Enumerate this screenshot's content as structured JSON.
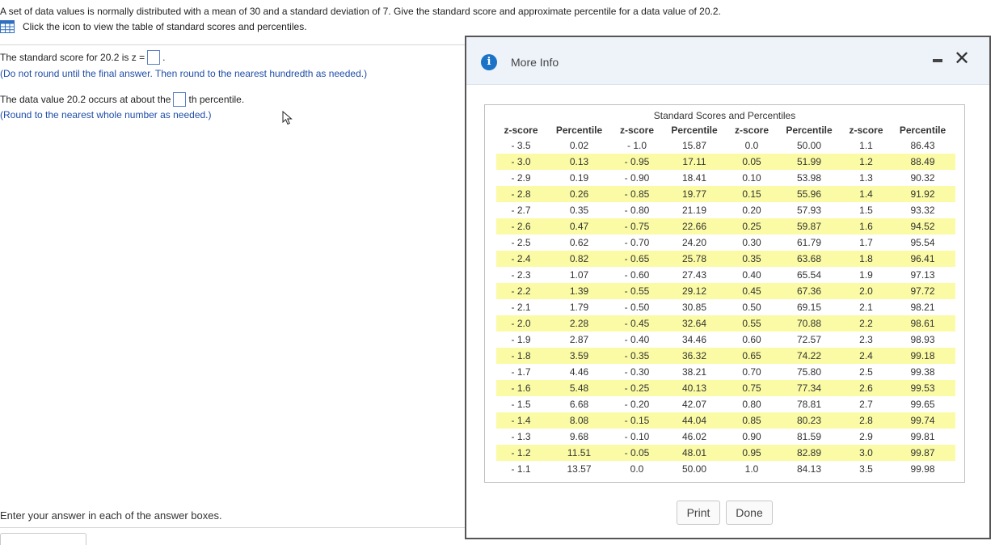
{
  "question": {
    "text": "A set of data values is normally distributed with a mean of 30 and a standard deviation of 7. Give the standard score and approximate percentile for a data value of 20.2.",
    "table_link": "Click the icon to view the table of standard scores and percentiles."
  },
  "part1": {
    "prefix": "The standard score for 20.2 is z =",
    "suffix": ".",
    "hint": "(Do not round until the final answer. Then round to the nearest hundredth as needed.)"
  },
  "part2": {
    "prefix": "The data value 20.2 occurs at about the",
    "suffix": "th percentile.",
    "hint": "(Round to the nearest whole number as needed.)"
  },
  "footer": "Enter your answer in each of the answer boxes.",
  "modal": {
    "title": "More Info",
    "table_caption": "Standard Scores and Percentiles",
    "headers": [
      "z-score",
      "Percentile",
      "z-score",
      "Percentile",
      "z-score",
      "Percentile",
      "z-score",
      "Percentile"
    ],
    "rows": [
      [
        "- 3.5",
        "0.02",
        "- 1.0",
        "15.87",
        "0.0",
        "50.00",
        "1.1",
        "86.43"
      ],
      [
        "- 3.0",
        "0.13",
        "- 0.95",
        "17.11",
        "0.05",
        "51.99",
        "1.2",
        "88.49"
      ],
      [
        "- 2.9",
        "0.19",
        "- 0.90",
        "18.41",
        "0.10",
        "53.98",
        "1.3",
        "90.32"
      ],
      [
        "- 2.8",
        "0.26",
        "- 0.85",
        "19.77",
        "0.15",
        "55.96",
        "1.4",
        "91.92"
      ],
      [
        "- 2.7",
        "0.35",
        "- 0.80",
        "21.19",
        "0.20",
        "57.93",
        "1.5",
        "93.32"
      ],
      [
        "- 2.6",
        "0.47",
        "- 0.75",
        "22.66",
        "0.25",
        "59.87",
        "1.6",
        "94.52"
      ],
      [
        "- 2.5",
        "0.62",
        "- 0.70",
        "24.20",
        "0.30",
        "61.79",
        "1.7",
        "95.54"
      ],
      [
        "- 2.4",
        "0.82",
        "- 0.65",
        "25.78",
        "0.35",
        "63.68",
        "1.8",
        "96.41"
      ],
      [
        "- 2.3",
        "1.07",
        "- 0.60",
        "27.43",
        "0.40",
        "65.54",
        "1.9",
        "97.13"
      ],
      [
        "- 2.2",
        "1.39",
        "- 0.55",
        "29.12",
        "0.45",
        "67.36",
        "2.0",
        "97.72"
      ],
      [
        "- 2.1",
        "1.79",
        "- 0.50",
        "30.85",
        "0.50",
        "69.15",
        "2.1",
        "98.21"
      ],
      [
        "- 2.0",
        "2.28",
        "- 0.45",
        "32.64",
        "0.55",
        "70.88",
        "2.2",
        "98.61"
      ],
      [
        "- 1.9",
        "2.87",
        "- 0.40",
        "34.46",
        "0.60",
        "72.57",
        "2.3",
        "98.93"
      ],
      [
        "- 1.8",
        "3.59",
        "- 0.35",
        "36.32",
        "0.65",
        "74.22",
        "2.4",
        "99.18"
      ],
      [
        "- 1.7",
        "4.46",
        "- 0.30",
        "38.21",
        "0.70",
        "75.80",
        "2.5",
        "99.38"
      ],
      [
        "- 1.6",
        "5.48",
        "- 0.25",
        "40.13",
        "0.75",
        "77.34",
        "2.6",
        "99.53"
      ],
      [
        "- 1.5",
        "6.68",
        "- 0.20",
        "42.07",
        "0.80",
        "78.81",
        "2.7",
        "99.65"
      ],
      [
        "- 1.4",
        "8.08",
        "- 0.15",
        "44.04",
        "0.85",
        "80.23",
        "2.8",
        "99.74"
      ],
      [
        "- 1.3",
        "9.68",
        "- 0.10",
        "46.02",
        "0.90",
        "81.59",
        "2.9",
        "99.81"
      ],
      [
        "- 1.2",
        "11.51",
        "- 0.05",
        "48.01",
        "0.95",
        "82.89",
        "3.0",
        "99.87"
      ],
      [
        "- 1.1",
        "13.57",
        "0.0",
        "50.00",
        "1.0",
        "84.13",
        "3.5",
        "99.98"
      ]
    ],
    "print_label": "Print",
    "done_label": "Done"
  },
  "colors": {
    "highlight": "#fbfba5",
    "hint_blue": "#1f4ea8",
    "info_blue": "#1a73c7",
    "header_bg": "#eef3fa"
  }
}
